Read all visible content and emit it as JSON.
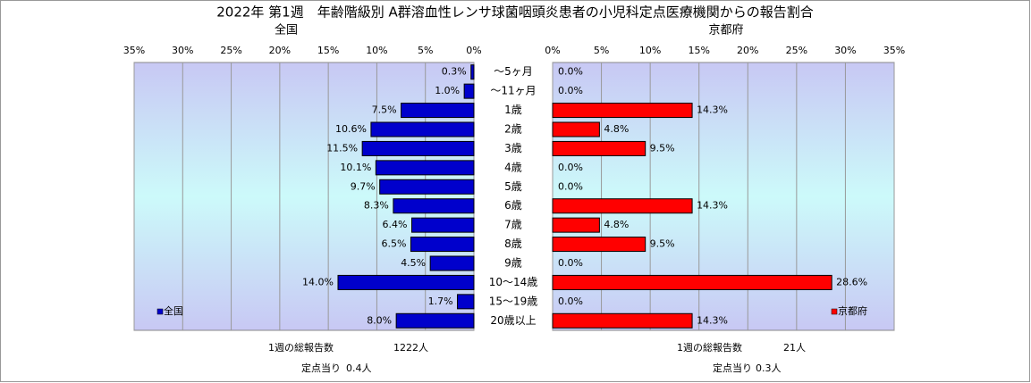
{
  "title": "2022年 第1週　年齢階級別 A群溶血性レンサ球菌咽頭炎患者の小児科定点医療機関からの報告割合",
  "chart_data": {
    "type": "bar",
    "orientation": "horizontal",
    "categories": [
      "〜5ヶ月",
      "〜11ヶ月",
      "1歳",
      "2歳",
      "3歳",
      "4歳",
      "5歳",
      "6歳",
      "7歳",
      "8歳",
      "9歳",
      "10〜14歳",
      "15〜19歳",
      "20歳以上"
    ],
    "xlim": [
      0,
      35
    ],
    "xticks": [
      {
        "value": 0,
        "label": "0%"
      },
      {
        "value": 5,
        "label": "5%"
      },
      {
        "value": 10,
        "label": "10%"
      },
      {
        "value": 15,
        "label": "15%"
      },
      {
        "value": 20,
        "label": "20%"
      },
      {
        "value": 25,
        "label": "25%"
      },
      {
        "value": 30,
        "label": "30%"
      },
      {
        "value": 35,
        "label": "35%"
      }
    ],
    "grid": true,
    "series": [
      {
        "name": "全国",
        "color": "#0000cc",
        "legend": "lower left",
        "values": [
          0.3,
          1.0,
          7.5,
          10.6,
          11.5,
          10.1,
          9.7,
          8.3,
          6.4,
          6.5,
          4.5,
          14.0,
          1.7,
          8.0
        ],
        "value_labels": [
          "0.3%",
          "1.0%",
          "7.5%",
          "10.6%",
          "11.5%",
          "10.1%",
          "9.7%",
          "8.3%",
          "6.4%",
          "6.5%",
          "4.5%",
          "14.0%",
          "1.7%",
          "8.0%"
        ],
        "summary": [
          [
            "1週の総報告数",
            "1222人"
          ],
          [
            "定点当り",
            "0.4人"
          ]
        ]
      },
      {
        "name": "京都府",
        "color": "#ff0000",
        "legend": "lower right",
        "values": [
          0,
          0,
          14.3,
          4.8,
          9.5,
          0,
          0,
          14.3,
          4.8,
          9.5,
          0,
          28.6,
          0,
          14.3
        ],
        "value_labels": [
          "0.0%",
          "0.0%",
          "14.3%",
          "4.8%",
          "9.5%",
          "0.0%",
          "0.0%",
          "14.3%",
          "4.8%",
          "9.5%",
          "0.0%",
          "28.6%",
          "0.0%",
          "14.3%"
        ],
        "summary": [
          [
            "1週の総報告数",
            "21人"
          ],
          [
            "定点当り",
            "0.3人"
          ]
        ]
      }
    ]
  }
}
